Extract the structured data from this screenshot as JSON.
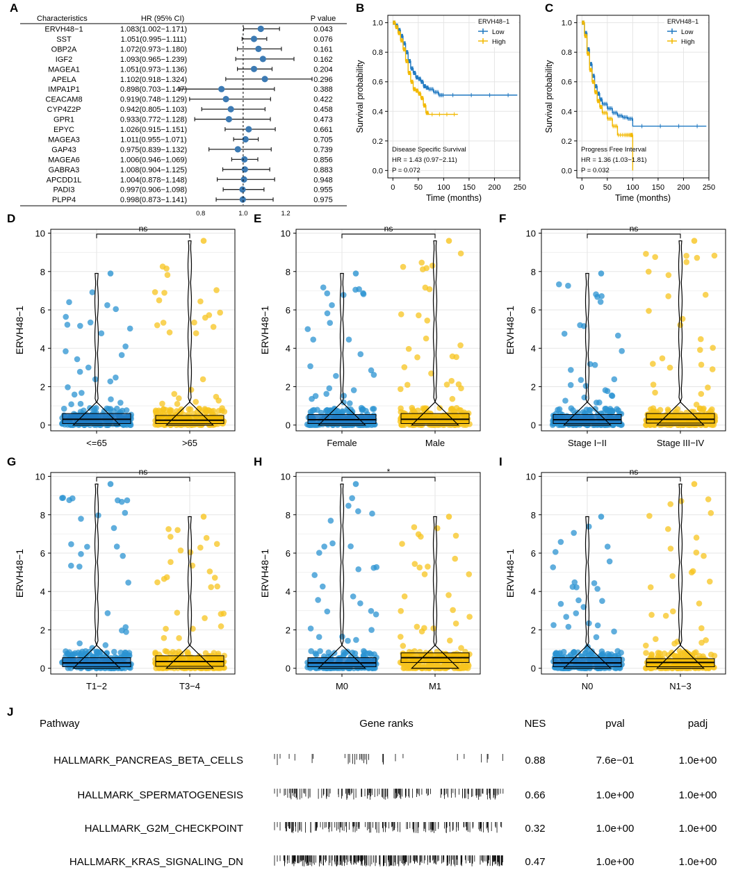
{
  "colors": {
    "low": "#1f78c1",
    "high": "#f2b800",
    "blue_pt": "#2b93d1",
    "yellow_pt": "#f7c41f",
    "grid": "#e5e5e5",
    "panel_bg": "#ffffff"
  },
  "panel_letters": [
    "A",
    "B",
    "C",
    "D",
    "E",
    "F",
    "G",
    "H",
    "I",
    "J"
  ],
  "chart_data": [
    {
      "type": "forest",
      "panel": "A",
      "headers": {
        "name": "Characteristics",
        "hr": "HR (95% CI)",
        "p": "P value"
      },
      "rows": [
        {
          "name": "ERVH48−1",
          "hr_text": "1.083(1.002−1.171)",
          "p": "0.043",
          "hr": 1.083,
          "lo": 1.002,
          "hi": 1.171
        },
        {
          "name": "SST",
          "hr_text": "1.051(0.995−1.111)",
          "p": "0.076",
          "hr": 1.051,
          "lo": 0.995,
          "hi": 1.111
        },
        {
          "name": "OBP2A",
          "hr_text": "1.072(0.973−1.180)",
          "p": "0.161",
          "hr": 1.072,
          "lo": 0.973,
          "hi": 1.18
        },
        {
          "name": "IGF2",
          "hr_text": "1.093(0.965−1.239)",
          "p": "0.162",
          "hr": 1.093,
          "lo": 0.965,
          "hi": 1.239
        },
        {
          "name": "MAGEA1",
          "hr_text": "1.051(0.973−1.136)",
          "p": "0.204",
          "hr": 1.051,
          "lo": 0.973,
          "hi": 1.136
        },
        {
          "name": "APELA",
          "hr_text": "1.102(0.918−1.324)",
          "p": "0.296",
          "hr": 1.102,
          "lo": 0.918,
          "hi": 1.324
        },
        {
          "name": "IMPA1P1",
          "hr_text": "0.898(0.703−1.147)",
          "p": "0.388",
          "hr": 0.898,
          "lo": 0.703,
          "hi": 1.147
        },
        {
          "name": "CEACAM8",
          "hr_text": "0.919(0.748−1.129)",
          "p": "0.422",
          "hr": 0.919,
          "lo": 0.748,
          "hi": 1.129
        },
        {
          "name": "CYP4Z2P",
          "hr_text": "0.942(0.805−1.103)",
          "p": "0.458",
          "hr": 0.942,
          "lo": 0.805,
          "hi": 1.103
        },
        {
          "name": "GPR1",
          "hr_text": "0.933(0.772−1.128)",
          "p": "0.473",
          "hr": 0.933,
          "lo": 0.772,
          "hi": 1.128
        },
        {
          "name": "EPYC",
          "hr_text": "1.026(0.915−1.151)",
          "p": "0.661",
          "hr": 1.026,
          "lo": 0.915,
          "hi": 1.151
        },
        {
          "name": "MAGEA3",
          "hr_text": "1.011(0.955−1.071)",
          "p": "0.705",
          "hr": 1.011,
          "lo": 0.955,
          "hi": 1.071
        },
        {
          "name": "GAP43",
          "hr_text": "0.975(0.839−1.132)",
          "p": "0.739",
          "hr": 0.975,
          "lo": 0.839,
          "hi": 1.132
        },
        {
          "name": "MAGEA6",
          "hr_text": "1.006(0.946−1.069)",
          "p": "0.856",
          "hr": 1.006,
          "lo": 0.946,
          "hi": 1.069
        },
        {
          "name": "GABRA3",
          "hr_text": "1.008(0.904−1.125)",
          "p": "0.883",
          "hr": 1.008,
          "lo": 0.904,
          "hi": 1.125
        },
        {
          "name": "APCDD1L",
          "hr_text": "1.004(0.878−1.148)",
          "p": "0.948",
          "hr": 1.004,
          "lo": 0.878,
          "hi": 1.148
        },
        {
          "name": "PADI3",
          "hr_text": "0.997(0.906−1.098)",
          "p": "0.955",
          "hr": 0.997,
          "lo": 0.906,
          "hi": 1.098
        },
        {
          "name": "PLPP4",
          "hr_text": "0.998(0.873−1.141)",
          "p": "0.975",
          "hr": 0.998,
          "lo": 0.873,
          "hi": 1.141
        }
      ],
      "xticks": [
        "0.8",
        "1.0",
        "1.2"
      ],
      "xlim": [
        0.68,
        1.36
      ],
      "ref_line": 1.0
    },
    {
      "type": "km",
      "panel": "B",
      "legend_title": "ERVH48−1",
      "legend": [
        "Low",
        "High"
      ],
      "annotation": [
        "Disease Specific Survival",
        "HR = 1.43 (0.97−2.11)",
        "P = 0.072"
      ],
      "xlabel": "Time (months)",
      "ylabel": "Survival probability",
      "xticks": [
        "0",
        "50",
        "100",
        "150",
        "200",
        "250"
      ],
      "yticks": [
        "0.0",
        "0.2",
        "0.4",
        "0.6",
        "0.8",
        "1.0"
      ],
      "xlim": [
        -10,
        250
      ],
      "ylim": [
        -0.05,
        1.05
      ],
      "series": [
        {
          "name": "Low",
          "points": [
            [
              0,
              1
            ],
            [
              5,
              0.98
            ],
            [
              10,
              0.95
            ],
            [
              15,
              0.91
            ],
            [
              20,
              0.86
            ],
            [
              25,
              0.8
            ],
            [
              30,
              0.74
            ],
            [
              35,
              0.69
            ],
            [
              40,
              0.66
            ],
            [
              45,
              0.63
            ],
            [
              50,
              0.62
            ],
            [
              55,
              0.6
            ],
            [
              60,
              0.57
            ],
            [
              65,
              0.56
            ],
            [
              70,
              0.55
            ],
            [
              80,
              0.53
            ],
            [
              90,
              0.51
            ],
            [
              100,
              0.51
            ],
            [
              245,
              0.51
            ]
          ]
        },
        {
          "name": "High",
          "points": [
            [
              0,
              1
            ],
            [
              5,
              0.97
            ],
            [
              10,
              0.93
            ],
            [
              15,
              0.88
            ],
            [
              20,
              0.82
            ],
            [
              25,
              0.74
            ],
            [
              30,
              0.66
            ],
            [
              35,
              0.6
            ],
            [
              40,
              0.55
            ],
            [
              45,
              0.54
            ],
            [
              50,
              0.52
            ],
            [
              55,
              0.49
            ],
            [
              60,
              0.44
            ],
            [
              65,
              0.39
            ],
            [
              70,
              0.38
            ],
            [
              128,
              0.38
            ]
          ]
        }
      ]
    },
    {
      "type": "km",
      "panel": "C",
      "legend_title": "ERVH48−1",
      "legend": [
        "Low",
        "High"
      ],
      "annotation": [
        "Progress Free Interval",
        "HR = 1.36 (1.03−1.81)",
        "P = 0.032"
      ],
      "xlabel": "Time (months)",
      "ylabel": "Survival probability",
      "xticks": [
        "0",
        "50",
        "100",
        "150",
        "200",
        "250"
      ],
      "yticks": [
        "0.0",
        "0.2",
        "0.4",
        "0.6",
        "0.8",
        "1.0"
      ],
      "xlim": [
        -10,
        250
      ],
      "ylim": [
        -0.05,
        1.05
      ],
      "series": [
        {
          "name": "Low",
          "points": [
            [
              0,
              1
            ],
            [
              5,
              0.93
            ],
            [
              10,
              0.82
            ],
            [
              15,
              0.72
            ],
            [
              20,
              0.64
            ],
            [
              25,
              0.57
            ],
            [
              30,
              0.52
            ],
            [
              35,
              0.48
            ],
            [
              40,
              0.45
            ],
            [
              50,
              0.42
            ],
            [
              60,
              0.39
            ],
            [
              70,
              0.37
            ],
            [
              80,
              0.36
            ],
            [
              90,
              0.35
            ],
            [
              100,
              0.3
            ],
            [
              245,
              0.3
            ]
          ]
        },
        {
          "name": "High",
          "points": [
            [
              0,
              1
            ],
            [
              5,
              0.91
            ],
            [
              10,
              0.79
            ],
            [
              15,
              0.68
            ],
            [
              20,
              0.6
            ],
            [
              25,
              0.53
            ],
            [
              30,
              0.47
            ],
            [
              35,
              0.43
            ],
            [
              40,
              0.39
            ],
            [
              50,
              0.35
            ],
            [
              60,
              0.3
            ],
            [
              70,
              0.24
            ],
            [
              85,
              0.24
            ],
            [
              95,
              0.24
            ],
            [
              100,
              0.0
            ]
          ]
        }
      ]
    },
    {
      "type": "violin_box",
      "panel": "D",
      "ylabel": "ERVH48−1",
      "categories": [
        "<=65",
        ">65"
      ],
      "sig": "ns",
      "ylim": [
        -0.3,
        10.2
      ],
      "yticks": [
        "0",
        "2",
        "4",
        "6",
        "8",
        "10"
      ],
      "medians": [
        0.3,
        0.25
      ],
      "q1": [
        0.08,
        0.08
      ],
      "q3": [
        0.6,
        0.5
      ],
      "max": [
        7.9,
        9.6
      ]
    },
    {
      "type": "violin_box",
      "panel": "E",
      "ylabel": "ERVH48−1",
      "categories": [
        "Female",
        "Male"
      ],
      "sig": "ns",
      "ylim": [
        -0.3,
        10.2
      ],
      "yticks": [
        "0",
        "2",
        "4",
        "6",
        "8",
        "10"
      ],
      "medians": [
        0.28,
        0.3
      ],
      "q1": [
        0.08,
        0.08
      ],
      "q3": [
        0.55,
        0.6
      ],
      "max": [
        7.9,
        9.6
      ]
    },
    {
      "type": "violin_box",
      "panel": "F",
      "ylabel": "ERVH48−1",
      "categories": [
        "Stage I−II",
        "Stage III−IV"
      ],
      "sig": "ns",
      "ylim": [
        -0.3,
        10.2
      ],
      "yticks": [
        "0",
        "2",
        "4",
        "6",
        "8",
        "10"
      ],
      "medians": [
        0.28,
        0.3
      ],
      "q1": [
        0.08,
        0.1
      ],
      "q3": [
        0.55,
        0.6
      ],
      "max": [
        7.9,
        9.6
      ]
    },
    {
      "type": "violin_box",
      "panel": "G",
      "ylabel": "ERVH48−1",
      "categories": [
        "T1−2",
        "T3−4"
      ],
      "sig": "ns",
      "ylim": [
        -0.3,
        10.2
      ],
      "yticks": [
        "0",
        "2",
        "4",
        "6",
        "8",
        "10"
      ],
      "medians": [
        0.28,
        0.35
      ],
      "q1": [
        0.08,
        0.1
      ],
      "q3": [
        0.55,
        0.65
      ],
      "max": [
        9.6,
        7.9
      ]
    },
    {
      "type": "violin_box",
      "panel": "H",
      "ylabel": "ERVH48−1",
      "categories": [
        "M0",
        "M1"
      ],
      "sig": "*",
      "ylim": [
        -0.3,
        10.2
      ],
      "yticks": [
        "0",
        "2",
        "4",
        "6",
        "8",
        "10"
      ],
      "medians": [
        0.28,
        0.55
      ],
      "q1": [
        0.08,
        0.3
      ],
      "q3": [
        0.55,
        0.8
      ],
      "max": [
        9.6,
        7.9
      ]
    },
    {
      "type": "violin_box",
      "panel": "I",
      "ylabel": "ERVH48−1",
      "categories": [
        "N0",
        "N1−3"
      ],
      "sig": "ns",
      "ylim": [
        -0.3,
        10.2
      ],
      "yticks": [
        "0",
        "2",
        "4",
        "6",
        "8",
        "10"
      ],
      "medians": [
        0.28,
        0.3
      ],
      "q1": [
        0.08,
        0.08
      ],
      "q3": [
        0.55,
        0.5
      ],
      "max": [
        7.9,
        9.6
      ]
    },
    {
      "type": "table",
      "panel": "J",
      "headers": {
        "pathway": "Pathway",
        "ranks": "Gene ranks",
        "nes": "NES",
        "pval": "pval",
        "padj": "padj"
      },
      "rows": [
        {
          "pathway": "HALLMARK_PANCREAS_BETA_CELLS",
          "nes": "0.88",
          "pval": "7.6e−01",
          "padj": "1.0e+00",
          "density": "sparse"
        },
        {
          "pathway": "HALLMARK_SPERMATOGENESIS",
          "nes": "0.66",
          "pval": "1.0e+00",
          "padj": "1.0e+00",
          "density": "medium"
        },
        {
          "pathway": "HALLMARK_G2M_CHECKPOINT",
          "nes": "0.32",
          "pval": "1.0e+00",
          "padj": "1.0e+00",
          "density": "medium"
        },
        {
          "pathway": "HALLMARK_KRAS_SIGNALING_DN",
          "nes": "0.47",
          "pval": "1.0e+00",
          "padj": "1.0e+00",
          "density": "dense"
        }
      ]
    }
  ]
}
